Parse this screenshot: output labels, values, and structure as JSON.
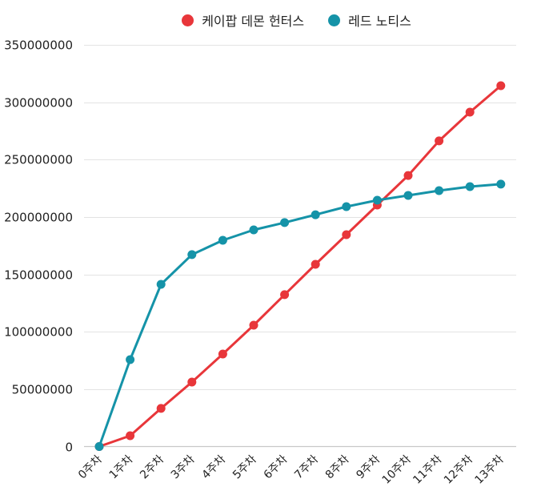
{
  "chart_data": {
    "type": "line",
    "title": "",
    "xlabel": "",
    "ylabel": "",
    "ylim": [
      0,
      350000000
    ],
    "y_ticks": [
      0,
      50000000,
      100000000,
      150000000,
      200000000,
      250000000,
      300000000,
      350000000
    ],
    "y_tick_labels": [
      "0",
      "50000000",
      "100000000",
      "150000000",
      "200000000",
      "250000000",
      "300000000",
      "350000000"
    ],
    "grid": "horizontal",
    "legend_position": "top",
    "categories": [
      "0주차",
      "1주차",
      "2주차",
      "3주차",
      "4주차",
      "5주차",
      "6주차",
      "7주차",
      "8주차",
      "9주차",
      "10주차",
      "11주차",
      "12주차",
      "13주차"
    ],
    "series": [
      {
        "name": "케이팝 데몬 헌터스",
        "color": "#E8363A",
        "values": [
          0,
          9400000,
          33200000,
          56200000,
          80600000,
          105700000,
          132300000,
          158800000,
          184600000,
          210400000,
          236200000,
          266300000,
          291400000,
          314400000
        ]
      },
      {
        "name": "레드 노티스",
        "color": "#1593A8",
        "values": [
          0,
          75700000,
          141300000,
          167200000,
          179700000,
          188800000,
          195100000,
          202000000,
          209000000,
          214600000,
          218800000,
          223000000,
          226500000,
          228600000
        ]
      }
    ]
  },
  "legend": {
    "items": [
      {
        "label": "케이팝 데몬 헌터스",
        "color": "#E8363A"
      },
      {
        "label": "레드 노티스",
        "color": "#1593A8"
      }
    ]
  },
  "colors": {
    "grid": "#E3E3E3",
    "axis": "#C8C8C8",
    "text": "#222222"
  }
}
